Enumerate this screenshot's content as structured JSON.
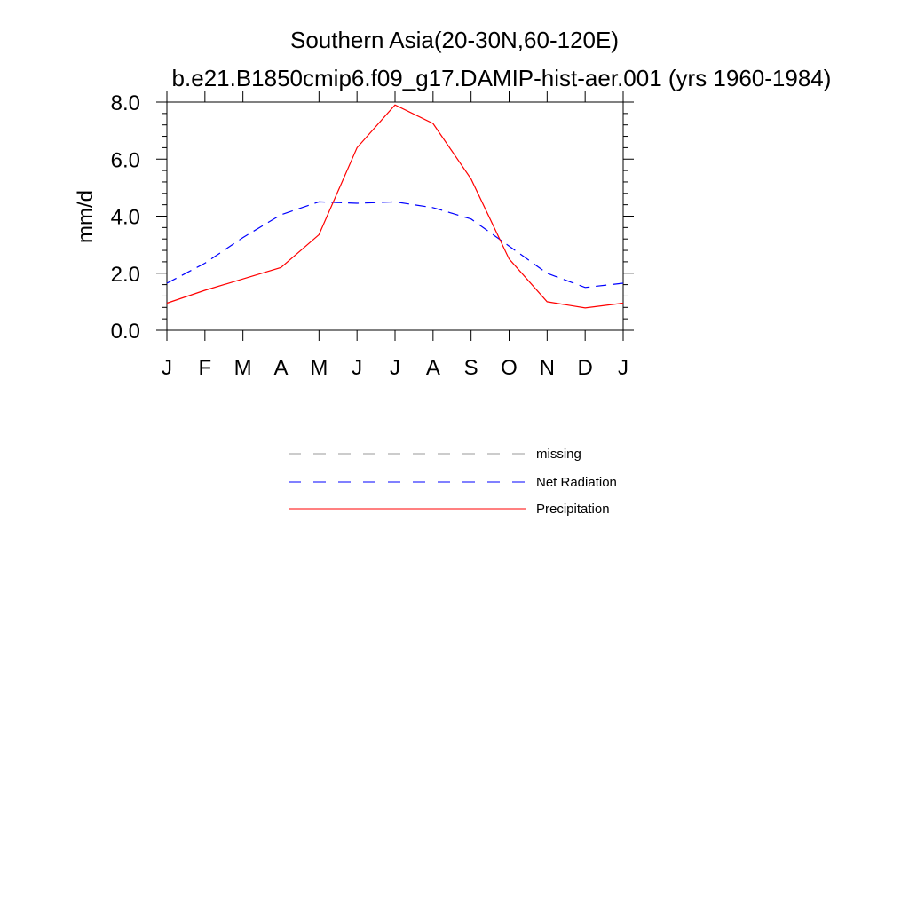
{
  "chart_data": {
    "type": "line",
    "title": "Southern Asia(20-30N,60-120E)",
    "subtitle": "b.e21.B1850cmip6.f09_g17.DAMIP-hist-aer.001 (yrs 1960-1984)",
    "xlabel": "",
    "ylabel": "mm/d",
    "categories": [
      "J",
      "F",
      "M",
      "A",
      "M",
      "J",
      "J",
      "A",
      "S",
      "O",
      "N",
      "D",
      "J"
    ],
    "ylim": [
      0,
      8
    ],
    "yticks": [
      "0.0",
      "2.0",
      "4.0",
      "6.0",
      "8.0"
    ],
    "grid": false,
    "legend_placement": "bottom-center",
    "legend": [
      {
        "name": "missing",
        "color": "#999999",
        "dash": "dashed"
      },
      {
        "name": "Net Radiation",
        "color": "#0000ff",
        "dash": "dashed"
      },
      {
        "name": "Precipitation",
        "color": "#ff0000",
        "dash": "solid"
      }
    ],
    "series": [
      {
        "name": "Net Radiation",
        "color": "#0000ff",
        "dash": "dashed",
        "values": [
          1.65,
          2.35,
          3.25,
          4.05,
          4.5,
          4.45,
          4.5,
          4.3,
          3.9,
          2.95,
          2.0,
          1.5,
          1.65
        ]
      },
      {
        "name": "Precipitation",
        "color": "#ff0000",
        "dash": "solid",
        "values": [
          0.95,
          1.4,
          1.8,
          2.2,
          3.35,
          6.4,
          7.9,
          7.25,
          5.3,
          2.5,
          1.0,
          0.78,
          0.95
        ]
      }
    ]
  }
}
